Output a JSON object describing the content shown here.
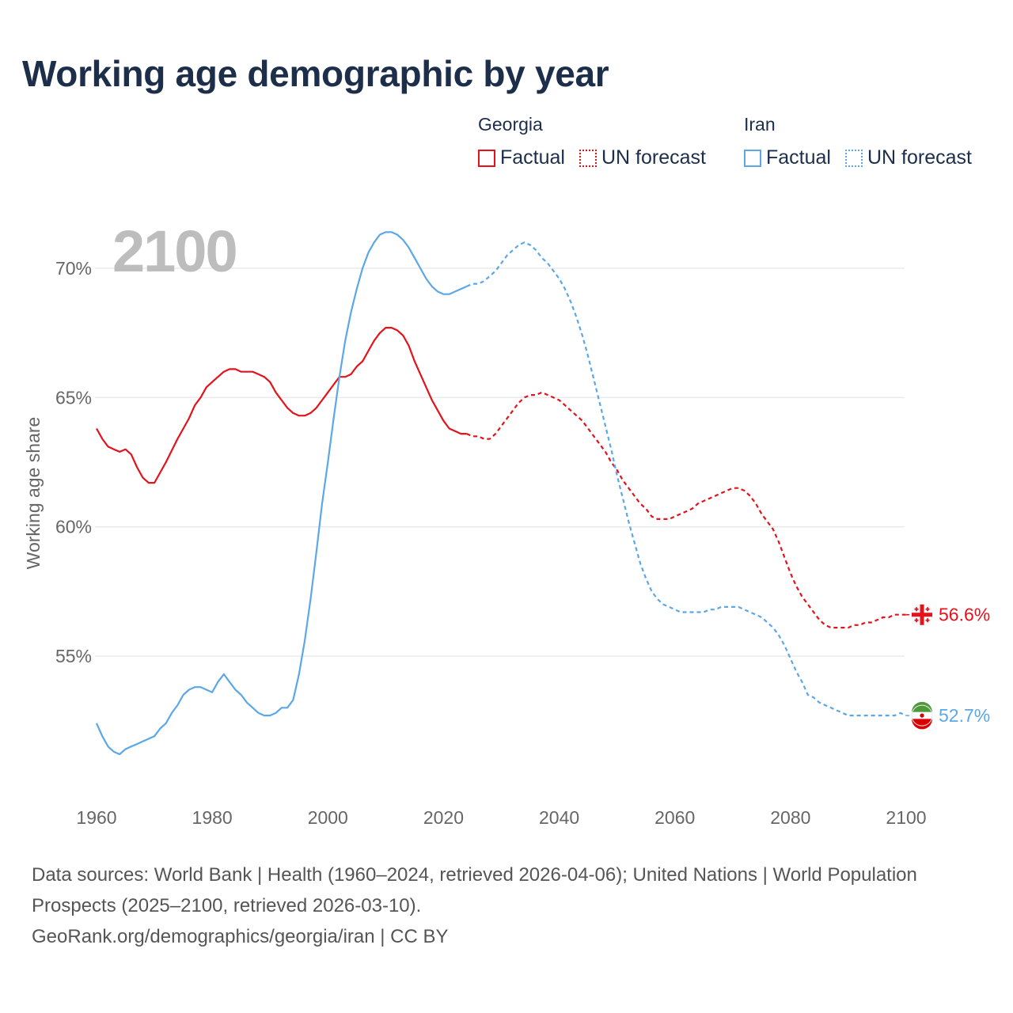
{
  "title": "Working age demographic by year",
  "legend": {
    "groups": [
      {
        "name": "Georgia",
        "items": [
          {
            "label": "Factual",
            "style": "solid"
          },
          {
            "label": "UN forecast",
            "style": "dotted"
          }
        ]
      },
      {
        "name": "Iran",
        "items": [
          {
            "label": "Factual",
            "style": "solid"
          },
          {
            "label": "UN forecast",
            "style": "dotted"
          }
        ]
      }
    ]
  },
  "colors": {
    "georgia": "#e3121b",
    "iran": "#5ca7e8",
    "grid": "#e6e6e6",
    "axis_text": "#666666",
    "year_label": "#bdbdbd"
  },
  "year_label": "2100",
  "source": {
    "line1": "Data sources: World Bank | Health (1960–2024, retrieved 2026-04-06); United Nations | World Population Prospects (2025–2100, retrieved 2026-03-10).",
    "line2": "GeoRank.org/demographics/georgia/iran | CC BY"
  },
  "chart_data": {
    "type": "line",
    "title": "Working age demographic by year",
    "xlabel": "",
    "ylabel": "Working age share",
    "xlim": [
      1960,
      2100
    ],
    "ylim": [
      50,
      72
    ],
    "xticks": [
      1960,
      1980,
      2000,
      2020,
      2040,
      2060,
      2080,
      2100
    ],
    "yticks": [
      55,
      60,
      65,
      70
    ],
    "ytick_labels": [
      "55%",
      "60%",
      "65%",
      "70%"
    ],
    "grid": true,
    "forecast_start": 2024,
    "series": [
      {
        "name": "Georgia",
        "color": "#e3121b",
        "end_label": "56.6%",
        "points": [
          [
            1960,
            63.8
          ],
          [
            1961,
            63.4
          ],
          [
            1962,
            63.1
          ],
          [
            1963,
            63.0
          ],
          [
            1964,
            62.9
          ],
          [
            1965,
            63.0
          ],
          [
            1966,
            62.8
          ],
          [
            1967,
            62.3
          ],
          [
            1968,
            61.9
          ],
          [
            1969,
            61.7
          ],
          [
            1970,
            61.7
          ],
          [
            1972,
            62.5
          ],
          [
            1974,
            63.4
          ],
          [
            1976,
            64.2
          ],
          [
            1977,
            64.7
          ],
          [
            1978,
            65.0
          ],
          [
            1979,
            65.4
          ],
          [
            1980,
            65.6
          ],
          [
            1981,
            65.8
          ],
          [
            1982,
            66.0
          ],
          [
            1983,
            66.1
          ],
          [
            1984,
            66.1
          ],
          [
            1985,
            66.0
          ],
          [
            1986,
            66.0
          ],
          [
            1987,
            66.0
          ],
          [
            1988,
            65.9
          ],
          [
            1989,
            65.8
          ],
          [
            1990,
            65.6
          ],
          [
            1991,
            65.2
          ],
          [
            1992,
            64.9
          ],
          [
            1993,
            64.6
          ],
          [
            1994,
            64.4
          ],
          [
            1995,
            64.3
          ],
          [
            1996,
            64.3
          ],
          [
            1997,
            64.4
          ],
          [
            1998,
            64.6
          ],
          [
            1999,
            64.9
          ],
          [
            2000,
            65.2
          ],
          [
            2001,
            65.5
          ],
          [
            2002,
            65.8
          ],
          [
            2003,
            65.8
          ],
          [
            2004,
            65.9
          ],
          [
            2005,
            66.2
          ],
          [
            2006,
            66.4
          ],
          [
            2007,
            66.8
          ],
          [
            2008,
            67.2
          ],
          [
            2009,
            67.5
          ],
          [
            2010,
            67.7
          ],
          [
            2011,
            67.7
          ],
          [
            2012,
            67.6
          ],
          [
            2013,
            67.4
          ],
          [
            2014,
            67.0
          ],
          [
            2015,
            66.4
          ],
          [
            2016,
            65.9
          ],
          [
            2017,
            65.4
          ],
          [
            2018,
            64.9
          ],
          [
            2019,
            64.5
          ],
          [
            2020,
            64.1
          ],
          [
            2021,
            63.8
          ],
          [
            2022,
            63.7
          ],
          [
            2023,
            63.6
          ],
          [
            2024,
            63.6
          ],
          [
            2025,
            63.5
          ],
          [
            2026,
            63.5
          ],
          [
            2027,
            63.4
          ],
          [
            2028,
            63.4
          ],
          [
            2029,
            63.6
          ],
          [
            2030,
            63.9
          ],
          [
            2031,
            64.2
          ],
          [
            2032,
            64.5
          ],
          [
            2033,
            64.8
          ],
          [
            2034,
            65.0
          ],
          [
            2035,
            65.1
          ],
          [
            2036,
            65.1
          ],
          [
            2037,
            65.2
          ],
          [
            2038,
            65.1
          ],
          [
            2039,
            65.0
          ],
          [
            2040,
            64.9
          ],
          [
            2041,
            64.7
          ],
          [
            2042,
            64.5
          ],
          [
            2043,
            64.3
          ],
          [
            2044,
            64.1
          ],
          [
            2045,
            63.8
          ],
          [
            2046,
            63.5
          ],
          [
            2047,
            63.2
          ],
          [
            2048,
            62.9
          ],
          [
            2049,
            62.5
          ],
          [
            2050,
            62.2
          ],
          [
            2051,
            61.8
          ],
          [
            2052,
            61.5
          ],
          [
            2053,
            61.2
          ],
          [
            2054,
            60.9
          ],
          [
            2055,
            60.7
          ],
          [
            2056,
            60.4
          ],
          [
            2057,
            60.3
          ],
          [
            2058,
            60.3
          ],
          [
            2059,
            60.3
          ],
          [
            2060,
            60.4
          ],
          [
            2061,
            60.5
          ],
          [
            2062,
            60.6
          ],
          [
            2063,
            60.7
          ],
          [
            2064,
            60.9
          ],
          [
            2065,
            61.0
          ],
          [
            2066,
            61.1
          ],
          [
            2067,
            61.2
          ],
          [
            2068,
            61.3
          ],
          [
            2069,
            61.4
          ],
          [
            2070,
            61.5
          ],
          [
            2071,
            61.5
          ],
          [
            2072,
            61.4
          ],
          [
            2073,
            61.2
          ],
          [
            2074,
            60.9
          ],
          [
            2075,
            60.5
          ],
          [
            2076,
            60.2
          ],
          [
            2077,
            59.9
          ],
          [
            2078,
            59.4
          ],
          [
            2079,
            58.8
          ],
          [
            2080,
            58.2
          ],
          [
            2081,
            57.7
          ],
          [
            2082,
            57.3
          ],
          [
            2083,
            57.0
          ],
          [
            2084,
            56.7
          ],
          [
            2085,
            56.4
          ],
          [
            2086,
            56.2
          ],
          [
            2087,
            56.1
          ],
          [
            2088,
            56.1
          ],
          [
            2089,
            56.1
          ],
          [
            2090,
            56.1
          ],
          [
            2091,
            56.2
          ],
          [
            2092,
            56.2
          ],
          [
            2093,
            56.3
          ],
          [
            2094,
            56.3
          ],
          [
            2095,
            56.4
          ],
          [
            2096,
            56.5
          ],
          [
            2097,
            56.5
          ],
          [
            2098,
            56.6
          ],
          [
            2099,
            56.6
          ],
          [
            2100,
            56.6
          ]
        ]
      },
      {
        "name": "Iran",
        "color": "#5ca7e8",
        "end_label": "52.7%",
        "points": [
          [
            1960,
            52.4
          ],
          [
            1961,
            51.9
          ],
          [
            1962,
            51.5
          ],
          [
            1963,
            51.3
          ],
          [
            1964,
            51.2
          ],
          [
            1965,
            51.4
          ],
          [
            1966,
            51.5
          ],
          [
            1967,
            51.6
          ],
          [
            1968,
            51.7
          ],
          [
            1969,
            51.8
          ],
          [
            1970,
            51.9
          ],
          [
            1971,
            52.2
          ],
          [
            1972,
            52.4
          ],
          [
            1973,
            52.8
          ],
          [
            1974,
            53.1
          ],
          [
            1975,
            53.5
          ],
          [
            1976,
            53.7
          ],
          [
            1977,
            53.8
          ],
          [
            1978,
            53.8
          ],
          [
            1979,
            53.7
          ],
          [
            1980,
            53.6
          ],
          [
            1981,
            54.0
          ],
          [
            1982,
            54.3
          ],
          [
            1983,
            54.0
          ],
          [
            1984,
            53.7
          ],
          [
            1985,
            53.5
          ],
          [
            1986,
            53.2
          ],
          [
            1987,
            53.0
          ],
          [
            1988,
            52.8
          ],
          [
            1989,
            52.7
          ],
          [
            1990,
            52.7
          ],
          [
            1991,
            52.8
          ],
          [
            1992,
            53.0
          ],
          [
            1993,
            53.0
          ],
          [
            1994,
            53.3
          ],
          [
            1995,
            54.3
          ],
          [
            1996,
            55.6
          ],
          [
            1997,
            57.2
          ],
          [
            1998,
            59.0
          ],
          [
            1999,
            60.9
          ],
          [
            2000,
            62.5
          ],
          [
            2001,
            64.2
          ],
          [
            2002,
            65.8
          ],
          [
            2003,
            67.2
          ],
          [
            2004,
            68.3
          ],
          [
            2005,
            69.2
          ],
          [
            2006,
            70.0
          ],
          [
            2007,
            70.6
          ],
          [
            2008,
            71.0
          ],
          [
            2009,
            71.3
          ],
          [
            2010,
            71.4
          ],
          [
            2011,
            71.4
          ],
          [
            2012,
            71.3
          ],
          [
            2013,
            71.1
          ],
          [
            2014,
            70.8
          ],
          [
            2015,
            70.4
          ],
          [
            2016,
            70.0
          ],
          [
            2017,
            69.6
          ],
          [
            2018,
            69.3
          ],
          [
            2019,
            69.1
          ],
          [
            2020,
            69.0
          ],
          [
            2021,
            69.0
          ],
          [
            2022,
            69.1
          ],
          [
            2023,
            69.2
          ],
          [
            2024,
            69.3
          ],
          [
            2025,
            69.4
          ],
          [
            2026,
            69.4
          ],
          [
            2027,
            69.5
          ],
          [
            2028,
            69.7
          ],
          [
            2029,
            69.9
          ],
          [
            2030,
            70.2
          ],
          [
            2031,
            70.5
          ],
          [
            2032,
            70.7
          ],
          [
            2033,
            70.9
          ],
          [
            2034,
            71.0
          ],
          [
            2035,
            70.9
          ],
          [
            2036,
            70.7
          ],
          [
            2037,
            70.4
          ],
          [
            2038,
            70.2
          ],
          [
            2039,
            69.9
          ],
          [
            2040,
            69.6
          ],
          [
            2041,
            69.2
          ],
          [
            2042,
            68.7
          ],
          [
            2043,
            68.1
          ],
          [
            2044,
            67.4
          ],
          [
            2045,
            66.6
          ],
          [
            2046,
            65.7
          ],
          [
            2047,
            64.8
          ],
          [
            2048,
            63.9
          ],
          [
            2049,
            63.0
          ],
          [
            2050,
            62.0
          ],
          [
            2051,
            61.1
          ],
          [
            2052,
            60.2
          ],
          [
            2053,
            59.4
          ],
          [
            2054,
            58.6
          ],
          [
            2055,
            58.0
          ],
          [
            2056,
            57.5
          ],
          [
            2057,
            57.2
          ],
          [
            2058,
            57.0
          ],
          [
            2059,
            56.9
          ],
          [
            2060,
            56.8
          ],
          [
            2061,
            56.7
          ],
          [
            2062,
            56.7
          ],
          [
            2063,
            56.7
          ],
          [
            2064,
            56.7
          ],
          [
            2065,
            56.7
          ],
          [
            2066,
            56.8
          ],
          [
            2067,
            56.8
          ],
          [
            2068,
            56.9
          ],
          [
            2069,
            56.9
          ],
          [
            2070,
            56.9
          ],
          [
            2071,
            56.9
          ],
          [
            2072,
            56.8
          ],
          [
            2073,
            56.7
          ],
          [
            2074,
            56.6
          ],
          [
            2075,
            56.5
          ],
          [
            2076,
            56.3
          ],
          [
            2077,
            56.1
          ],
          [
            2078,
            55.8
          ],
          [
            2079,
            55.4
          ],
          [
            2080,
            54.9
          ],
          [
            2081,
            54.4
          ],
          [
            2082,
            54.0
          ],
          [
            2083,
            53.5
          ],
          [
            2084,
            53.4
          ],
          [
            2085,
            53.2
          ],
          [
            2086,
            53.1
          ],
          [
            2087,
            53.0
          ],
          [
            2088,
            52.9
          ],
          [
            2089,
            52.8
          ],
          [
            2090,
            52.7
          ],
          [
            2091,
            52.7
          ],
          [
            2092,
            52.7
          ],
          [
            2093,
            52.7
          ],
          [
            2094,
            52.7
          ],
          [
            2095,
            52.7
          ],
          [
            2096,
            52.7
          ],
          [
            2097,
            52.7
          ],
          [
            2098,
            52.7
          ],
          [
            2099,
            52.8
          ],
          [
            2100,
            52.7
          ]
        ]
      }
    ]
  }
}
